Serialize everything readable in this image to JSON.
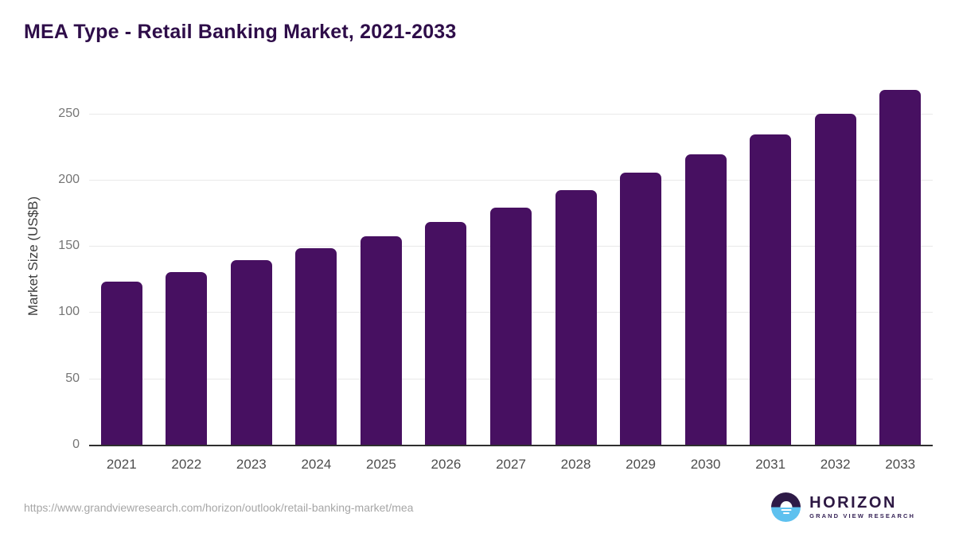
{
  "page": {
    "title": "MEA Type - Retail Banking Market, 2021-2033"
  },
  "chart_data": {
    "type": "bar",
    "title": "MEA Type - Retail Banking Market, 2021-2033",
    "categories": [
      "2021",
      "2022",
      "2023",
      "2024",
      "2025",
      "2026",
      "2027",
      "2028",
      "2029",
      "2030",
      "2031",
      "2032",
      "2033"
    ],
    "values": [
      123,
      130,
      139,
      148,
      157,
      168,
      179,
      192,
      205,
      219,
      234,
      250,
      268
    ],
    "xlabel": "",
    "ylabel": "Market Size (US$B)",
    "ylim": [
      0,
      275
    ],
    "yticks": [
      0,
      50,
      100,
      150,
      200,
      250
    ],
    "grid": true,
    "legend": false,
    "bar_color": "#471061",
    "axis_line_color": "#2f2f2f",
    "gridline_color": "#e9e9e9"
  },
  "footer": {
    "source_url": "https://www.grandviewresearch.com/horizon/outlook/retail-banking-market/mea",
    "logo": {
      "name": "HORIZON",
      "subtitle": "GRAND VIEW RESEARCH",
      "icon": "horizon-sunrise-icon",
      "icon_top_color": "#2e1a47",
      "icon_bottom_color": "#5ec1ef"
    }
  },
  "colors": {
    "title": "#2e0d49",
    "y_tick_label": "#757575",
    "x_tick_label": "#4d4d4d",
    "axis_title": "#3d3d3d",
    "source_url": "#a6a6a6"
  }
}
